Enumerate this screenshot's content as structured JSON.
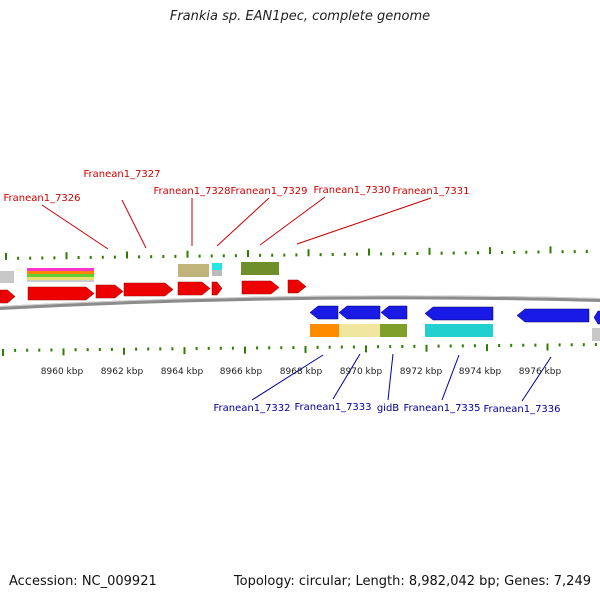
{
  "title": "Frankia sp. EAN1pec, complete genome",
  "accession": "Accession: NC_009921",
  "summary": "Topology: circular; Length: 8,982,042 bp; Genes: 7,249",
  "colors": {
    "top_label": "#cc0000",
    "bottom_label": "#000099",
    "tick": "#2e7d00",
    "forward_gene": "#ee0000",
    "reverse_gene": "#1a1ae6",
    "backbone": "#888888"
  },
  "axis_labels": [
    "8960 kbp",
    "8962 kbp",
    "8964 kbp",
    "8966 kbp",
    "8968 kbp",
    "8970 kbp",
    "8972 kbp",
    "8974 kbp",
    "8976 kbp"
  ],
  "top_genes": [
    "Franean1_7326",
    "Franean1_7327",
    "Franean1_7328",
    "Franean1_7329",
    "Franean1_7330",
    "Franean1_7331"
  ],
  "bottom_genes": [
    "Franean1_7332",
    "Franean1_7333",
    "gidB",
    "Franean1_7335",
    "Franean1_7336"
  ]
}
